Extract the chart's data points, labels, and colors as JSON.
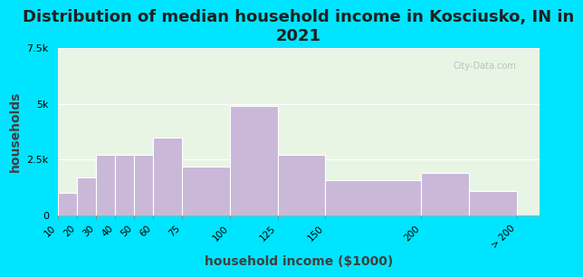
{
  "title": "Distribution of median household income in Kosciusko, IN in\n2021",
  "xlabel": "household income ($1000)",
  "ylabel": "households",
  "bar_labels": [
    "10",
    "20",
    "30",
    "40",
    "50",
    "60",
    "75",
    "100",
    "125",
    "150",
    "200",
    "> 200"
  ],
  "bar_values": [
    1000,
    1700,
    2700,
    2700,
    2700,
    3500,
    2200,
    4900,
    2700,
    1600,
    1900,
    1100
  ],
  "left_edges": [
    10,
    20,
    30,
    40,
    50,
    60,
    75,
    100,
    125,
    150,
    200,
    225
  ],
  "bar_widths": [
    10,
    10,
    10,
    10,
    10,
    15,
    25,
    25,
    25,
    50,
    25,
    25
  ],
  "bar_color": "#c9b8d8",
  "bar_edgecolor": "#ffffff",
  "ylim": [
    0,
    7500
  ],
  "yticks": [
    0,
    2500,
    5000,
    7500
  ],
  "ytick_labels": [
    "0",
    "2.5k",
    "5k",
    "7.5k"
  ],
  "bg_color": "#e8f5e5",
  "outer_bg": "#00e5ff",
  "watermark": "City-Data.com",
  "title_fontsize": 13,
  "axis_label_fontsize": 10
}
